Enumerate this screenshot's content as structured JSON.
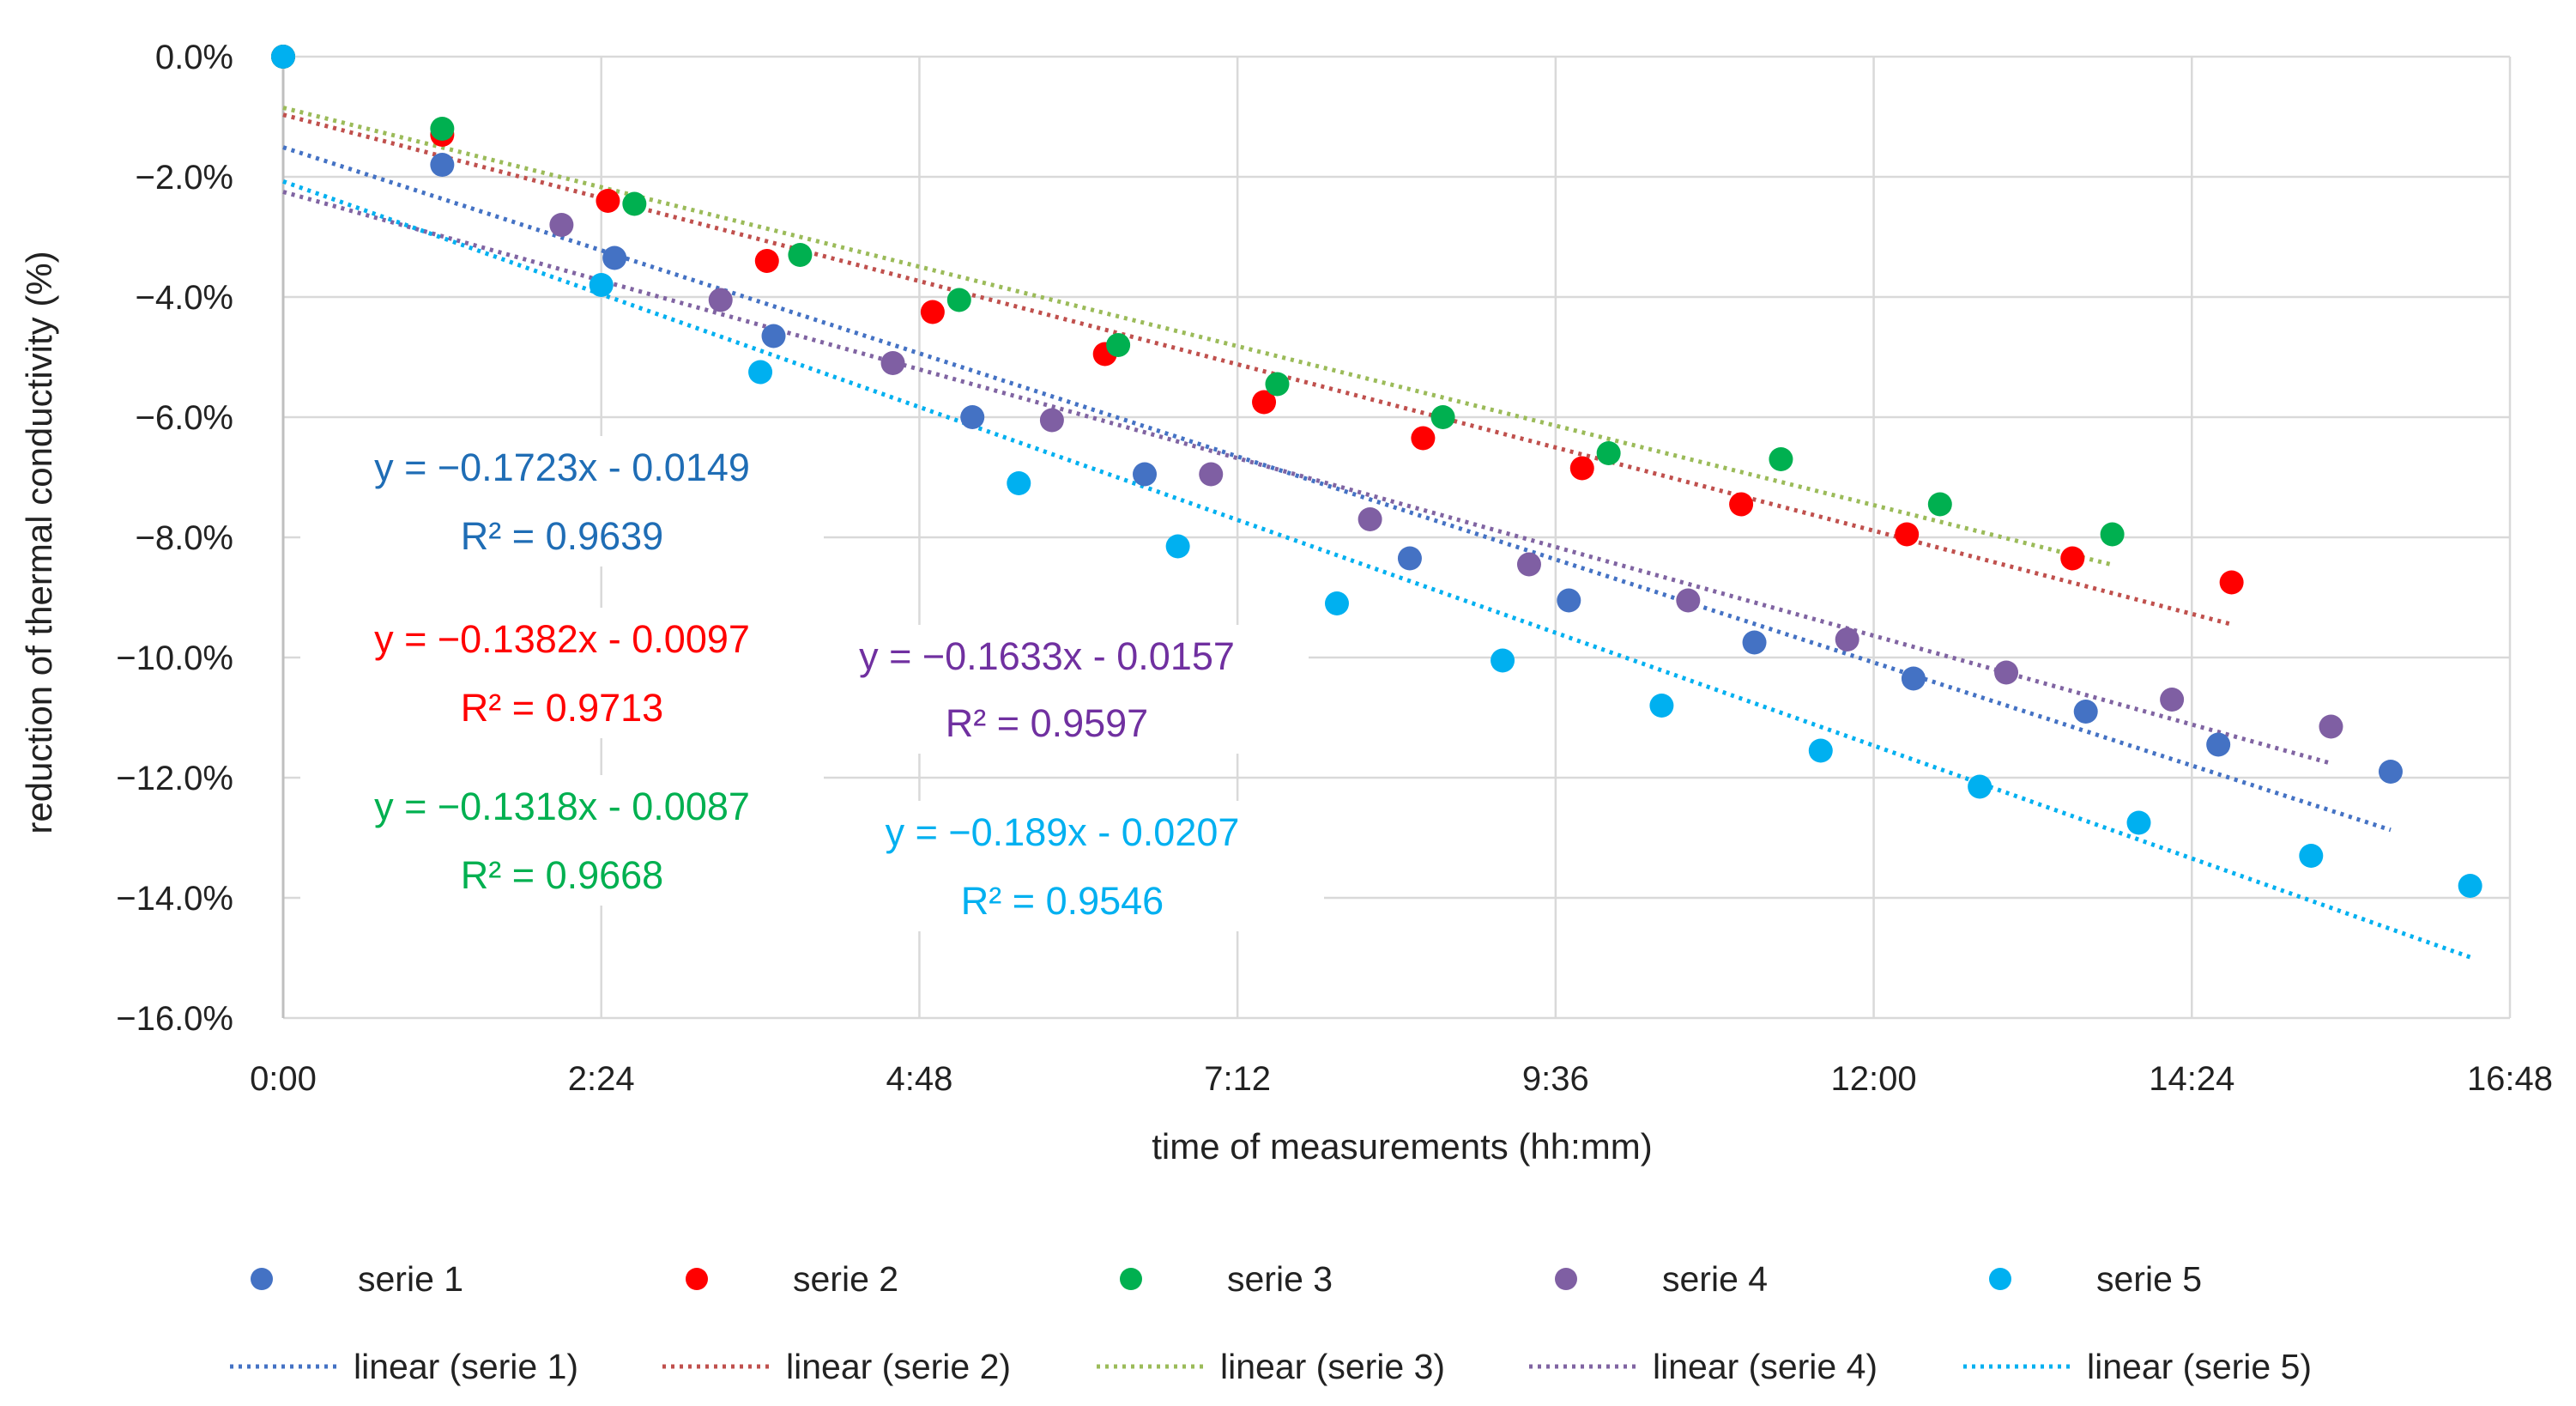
{
  "chart_data": {
    "type": "scatter",
    "title": "",
    "xlabel": "time of measurements (hh:mm)",
    "ylabel": "reduction of thermal conductivity (%)",
    "x_unit": "hours",
    "xlim": [
      0,
      16.8
    ],
    "ylim": [
      -16,
      0
    ],
    "x_ticks": [
      0,
      2.4,
      4.8,
      7.2,
      9.6,
      12,
      14.4,
      16.8
    ],
    "x_tick_labels": [
      "0:00",
      "2:24",
      "4:48",
      "7:12",
      "9:36",
      "12:00",
      "14:24",
      "16:48"
    ],
    "y_ticks": [
      0,
      -2,
      -4,
      -6,
      -8,
      -10,
      -12,
      -14,
      -16
    ],
    "y_tick_labels": [
      "0.0%",
      "−2.0%",
      "−4.0%",
      "−6.0%",
      "−8.0%",
      "−10.0%",
      "−12.0%",
      "−14.0%",
      "−16.0%"
    ],
    "grid": true,
    "legend_position": "bottom",
    "series": [
      {
        "name": "serie 1",
        "color": "#4472C4",
        "x": [
          0,
          1.2,
          2.5,
          3.7,
          5.2,
          6.5,
          8.5,
          9.7,
          11.1,
          12.3,
          13.6,
          14.6,
          15.9
        ],
        "y": [
          0,
          -1.8,
          -3.35,
          -4.65,
          -6.0,
          -6.95,
          -8.35,
          -9.05,
          -9.75,
          -10.35,
          -10.9,
          -11.45,
          -11.9
        ]
      },
      {
        "name": "serie 2",
        "color": "#FF0000",
        "x": [
          0,
          1.2,
          2.45,
          3.65,
          4.9,
          6.2,
          7.4,
          8.6,
          9.8,
          11.0,
          12.25,
          13.5,
          14.7
        ],
        "y": [
          0,
          -1.3,
          -2.4,
          -3.4,
          -4.25,
          -4.95,
          -5.75,
          -6.35,
          -6.85,
          -7.45,
          -7.95,
          -8.35,
          -8.75
        ]
      },
      {
        "name": "serie 3",
        "color": "#00B050",
        "x": [
          0,
          1.2,
          2.65,
          3.9,
          5.1,
          6.3,
          7.5,
          8.75,
          10.0,
          11.3,
          12.5,
          13.8
        ],
        "y": [
          0,
          -1.2,
          -2.45,
          -3.3,
          -4.05,
          -4.8,
          -5.45,
          -6.0,
          -6.6,
          -6.7,
          -7.45,
          -7.95
        ]
      },
      {
        "name": "serie 4",
        "color": "#7F5FA3",
        "x": [
          2.1,
          3.3,
          4.6,
          5.8,
          7.0,
          8.2,
          9.4,
          10.6,
          11.8,
          13.0,
          14.25,
          15.45
        ],
        "y": [
          -2.8,
          -4.05,
          -5.1,
          -6.05,
          -6.95,
          -7.7,
          -8.45,
          -9.05,
          -9.7,
          -10.25,
          -10.7,
          -11.15
        ]
      },
      {
        "name": "serie 5",
        "color": "#00B0F0",
        "x": [
          0,
          2.4,
          3.6,
          5.55,
          6.75,
          7.95,
          9.2,
          10.4,
          11.6,
          12.8,
          14.0,
          15.3,
          16.5
        ],
        "y": [
          0,
          -3.8,
          -5.25,
          -7.1,
          -8.15,
          -9.1,
          -10.05,
          -10.8,
          -11.55,
          -12.15,
          -12.75,
          -13.3,
          -13.8
        ]
      }
    ],
    "trendlines": [
      {
        "name": "linear (serie 1)",
        "color": "#4472C4",
        "x_range": [
          0,
          15.9
        ],
        "equation": "y = −0.1723x - 0.0149",
        "r2": "R² = 0.9639",
        "eq_color": "#1F6DB5"
      },
      {
        "name": "linear (serie 2)",
        "color": "#C0504D",
        "x_range": [
          0,
          14.7
        ],
        "equation": "y = −0.1382x - 0.0097",
        "r2": "R² = 0.9713",
        "eq_color": "#FF0000"
      },
      {
        "name": "linear (serie 3)",
        "color": "#9BBB59",
        "x_range": [
          0,
          13.8
        ],
        "equation": "y = −0.1318x - 0.0087",
        "r2": "R² = 0.9668",
        "eq_color": "#00B050"
      },
      {
        "name": "linear (serie 4)",
        "color": "#8064A2",
        "x_range": [
          0,
          15.45
        ],
        "equation": "y = −0.1633x - 0.0157",
        "r2": "R² = 0.9597",
        "eq_color": "#7030A0"
      },
      {
        "name": "linear (serie 5)",
        "color": "#00B0F0",
        "x_range": [
          0,
          16.5
        ],
        "equation": "y = −0.189x - 0.0207",
        "r2": "R² = 0.9546",
        "eq_color": "#00B0F0"
      }
    ]
  }
}
